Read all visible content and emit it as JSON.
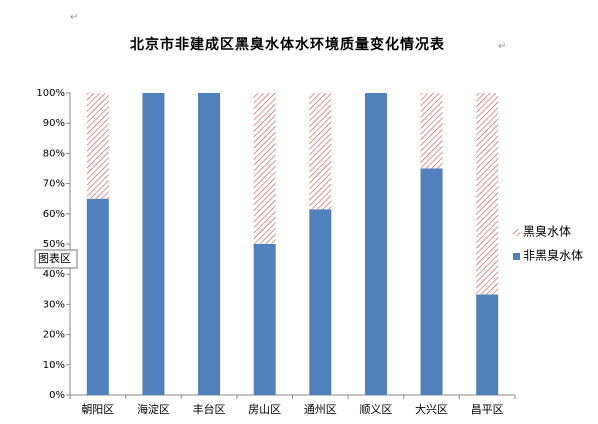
{
  "chart_data": {
    "type": "stacked_bar",
    "title": "北京市非建成区黑臭水体水环境质量变化情况表",
    "paragraph_mark": "↵",
    "tooltip": "图表区",
    "categories": [
      "朝阳区",
      "海淀区",
      "丰台区",
      "房山区",
      "通州区",
      "顺义区",
      "大兴区",
      "昌平区"
    ],
    "series": [
      {
        "name": "非黑臭水体",
        "color": "#4f81bd",
        "fill": "solid",
        "values": [
          65,
          100,
          100,
          50,
          61.5,
          100,
          75,
          33.3
        ]
      },
      {
        "name": "黑臭水体",
        "color": "#c0504d",
        "fill": "hatch",
        "values": [
          35,
          0,
          0,
          50,
          38.5,
          0,
          25,
          66.7
        ]
      }
    ],
    "ylim": [
      0,
      100
    ],
    "yticks": [
      {
        "value": 0,
        "label": "0%"
      },
      {
        "value": 10,
        "label": "10%"
      },
      {
        "value": 20,
        "label": "20%"
      },
      {
        "value": 30,
        "label": "30%"
      },
      {
        "value": 40,
        "label": "40%"
      },
      {
        "value": 50,
        "label": "50%"
      },
      {
        "value": 60,
        "label": "60%"
      },
      {
        "value": 70,
        "label": "70%"
      },
      {
        "value": 80,
        "label": "80%"
      },
      {
        "value": 90,
        "label": "90%"
      },
      {
        "value": 100,
        "label": "100%"
      }
    ],
    "grid": false,
    "legend": "right"
  }
}
